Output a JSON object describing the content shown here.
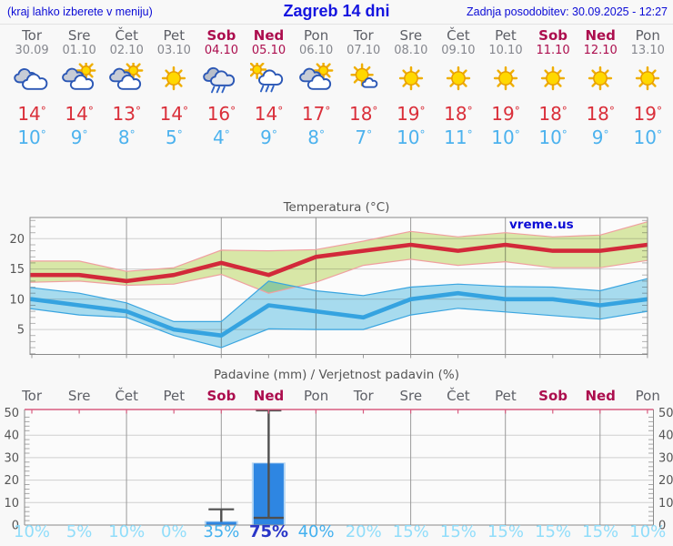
{
  "header": {
    "left_note": "(kraj lahko izberete v meniju)",
    "title": "Zagreb 14 dni",
    "updated": "Zadnja posodobitev: 30.09.2025 - 12:27"
  },
  "labels": {
    "degree": "°"
  },
  "colors": {
    "header_blue": "#0b0bd6",
    "weekend_red": "#ac0e4e",
    "high_temp_red": "#da2f3a",
    "low_temp_blue": "#4cb2ee",
    "prob_faint": "#90ddfa",
    "prob_mid": "#44b1ef",
    "prob_strong": "#2936c8"
  },
  "days": [
    {
      "name": "Tor",
      "date": "30.09",
      "weekend": false,
      "icon": "cloudy",
      "high": 14,
      "low": 10
    },
    {
      "name": "Sre",
      "date": "01.10",
      "weekend": false,
      "icon": "sun-clouds",
      "high": 14,
      "low": 9
    },
    {
      "name": "Čet",
      "date": "02.10",
      "weekend": false,
      "icon": "sun-clouds",
      "high": 13,
      "low": 8
    },
    {
      "name": "Pet",
      "date": "03.10",
      "weekend": false,
      "icon": "sunny",
      "high": 14,
      "low": 5
    },
    {
      "name": "Sob",
      "date": "04.10",
      "weekend": true,
      "icon": "rain",
      "high": 16,
      "low": 4
    },
    {
      "name": "Ned",
      "date": "05.10",
      "weekend": true,
      "icon": "sun-rain",
      "high": 14,
      "low": 9
    },
    {
      "name": "Pon",
      "date": "06.10",
      "weekend": false,
      "icon": "sun-clouds",
      "high": 17,
      "low": 8
    },
    {
      "name": "Tor",
      "date": "07.10",
      "weekend": false,
      "icon": "sun-small-cloud",
      "high": 18,
      "low": 7
    },
    {
      "name": "Sre",
      "date": "08.10",
      "weekend": false,
      "icon": "sunny",
      "high": 19,
      "low": 10
    },
    {
      "name": "Čet",
      "date": "09.10",
      "weekend": false,
      "icon": "sunny",
      "high": 18,
      "low": 11
    },
    {
      "name": "Pet",
      "date": "10.10",
      "weekend": false,
      "icon": "sunny",
      "high": 19,
      "low": 10
    },
    {
      "name": "Sob",
      "date": "11.10",
      "weekend": true,
      "icon": "sunny",
      "high": 18,
      "low": 10
    },
    {
      "name": "Ned",
      "date": "12.10",
      "weekend": true,
      "icon": "sunny",
      "high": 18,
      "low": 9
    },
    {
      "name": "Pon",
      "date": "13.10",
      "weekend": false,
      "icon": "sunny",
      "high": 19,
      "low": 10
    }
  ],
  "chart_data": [
    {
      "type": "line",
      "title": "Temperatura (°C)",
      "watermark": "vreme.us",
      "x_labels": [
        "Tor",
        "Sre",
        "Čet",
        "Pet",
        "Sob",
        "Ned",
        "Pon",
        "Tor",
        "Sre",
        "Čet",
        "Pet",
        "Sob",
        "Ned",
        "Pon"
      ],
      "ylim": [
        0.9,
        23.5
      ],
      "yticks": [
        5,
        10,
        15,
        20
      ],
      "grid_day_indices": [
        2,
        4,
        6,
        8,
        10,
        12
      ],
      "legend_position": "none",
      "series": [
        {
          "name": "max-temp",
          "color": "#d2293a",
          "band_fill": "#dcebaa",
          "band_edge": "#f0a0a0",
          "values": [
            14,
            14,
            13,
            14,
            16,
            14,
            17,
            18,
            19,
            18,
            19,
            18,
            18,
            19
          ],
          "band_upper": [
            16.3,
            16.3,
            14.6,
            15.2,
            18.1,
            18,
            18.2,
            19.6,
            21.2,
            20.3,
            21,
            20.3,
            20.6,
            22.8
          ],
          "band_lower": [
            12.8,
            13,
            12.3,
            12.5,
            14.1,
            11,
            12.8,
            15.6,
            16.6,
            15.6,
            16.2,
            15.2,
            15.2,
            16.4
          ]
        },
        {
          "name": "min-temp",
          "color": "#35a3e0",
          "band_fill": "#aadff2",
          "band_edge": "#3aa5e0",
          "values": [
            10,
            9,
            8,
            5,
            4,
            9,
            8,
            7,
            10,
            11,
            10,
            10,
            9,
            10
          ],
          "band_upper": [
            11.9,
            11,
            9.4,
            6.3,
            6.3,
            13,
            11.4,
            10.6,
            12,
            12.5,
            12.1,
            12,
            11.4,
            13.4
          ],
          "band_lower": [
            8.4,
            7.4,
            7,
            4,
            2,
            5.1,
            5,
            5,
            7.4,
            8.5,
            7.9,
            7.3,
            6.7,
            8
          ]
        }
      ]
    },
    {
      "type": "bar",
      "title": "Padavine (mm) / Verjetnost padavin (%)",
      "x_labels": [
        "Tor",
        "Sre",
        "Čet",
        "Pet",
        "Sob",
        "Ned",
        "Pon",
        "Tor",
        "Sre",
        "Čet",
        "Pet",
        "Sob",
        "Ned",
        "Pon"
      ],
      "ylim": [
        0,
        51.5
      ],
      "yticks": [
        0,
        10,
        20,
        30,
        40,
        50
      ],
      "grid_day_indices": [
        2,
        4,
        6,
        8,
        10,
        12
      ],
      "bar_color": "#2e86e2",
      "bar_halo_color": "#b9d8f3",
      "values": [
        0,
        0,
        0,
        0,
        1.4,
        27.4,
        0,
        0,
        0,
        0,
        0,
        0,
        0,
        0
      ],
      "whisker_top": [
        null,
        null,
        null,
        null,
        7,
        51,
        null,
        null,
        null,
        null,
        null,
        null,
        null,
        null
      ],
      "whisker_bottom": [
        null,
        null,
        null,
        null,
        1.4,
        3.2,
        null,
        null,
        null,
        null,
        null,
        null,
        null,
        null
      ],
      "probabilities": [
        "10%",
        "5%",
        "10%",
        "0%",
        "35%",
        "75%",
        "40%",
        "20%",
        "15%",
        "15%",
        "15%",
        "15%",
        "15%",
        "10%"
      ],
      "prob_levels": [
        "faint",
        "faint",
        "faint",
        "faint",
        "mid",
        "strong",
        "mid",
        "faint",
        "faint",
        "faint",
        "faint",
        "faint",
        "faint",
        "faint"
      ]
    }
  ]
}
